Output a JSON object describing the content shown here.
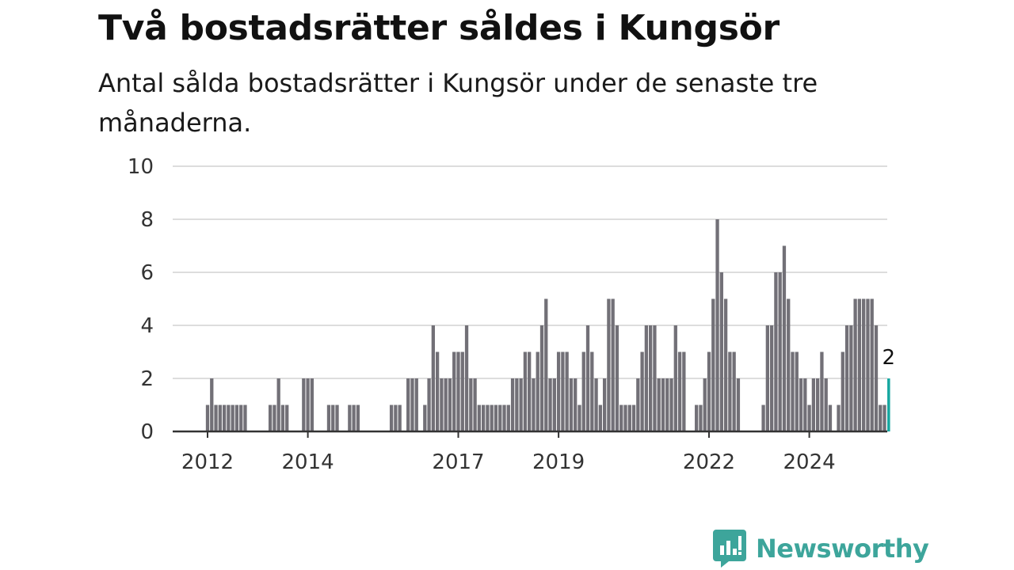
{
  "title": "Två bostadsrätter såldes i Kungsör",
  "subtitle": "Antal sålda bostadsrätter i Kungsör under de senaste tre månaderna.",
  "brand": {
    "name": "Newsworthy",
    "icon": "newsworthy-logo-icon"
  },
  "colors": {
    "bar": "#727077",
    "highlight": "#16a7a0",
    "grid": "#dddddd",
    "axis": "#333333",
    "brand": "#3da59b"
  },
  "chart_data": {
    "type": "bar",
    "ylim": [
      0,
      10
    ],
    "yticks": [
      0,
      2,
      4,
      6,
      8,
      10
    ],
    "xticks": [
      {
        "label": "2012",
        "year": 2012
      },
      {
        "label": "2014",
        "year": 2014
      },
      {
        "label": "2017",
        "year": 2017
      },
      {
        "label": "2019",
        "year": 2019
      },
      {
        "label": "2022",
        "year": 2022
      },
      {
        "label": "2024",
        "year": 2024
      }
    ],
    "start": "2012-01",
    "values": [
      1,
      2,
      1,
      1,
      1,
      1,
      1,
      1,
      1,
      1,
      0,
      0,
      0,
      0,
      0,
      1,
      1,
      2,
      1,
      1,
      0,
      0,
      0,
      2,
      2,
      2,
      0,
      0,
      0,
      1,
      1,
      1,
      0,
      0,
      1,
      1,
      1,
      0,
      0,
      0,
      0,
      0,
      0,
      0,
      1,
      1,
      1,
      0,
      2,
      2,
      2,
      0,
      1,
      2,
      4,
      3,
      2,
      2,
      2,
      3,
      3,
      3,
      4,
      2,
      2,
      1,
      1,
      1,
      1,
      1,
      1,
      1,
      1,
      2,
      2,
      2,
      3,
      3,
      2,
      3,
      4,
      5,
      2,
      2,
      3,
      3,
      3,
      2,
      2,
      1,
      3,
      4,
      3,
      2,
      1,
      2,
      5,
      5,
      4,
      1,
      1,
      1,
      1,
      2,
      3,
      4,
      4,
      4,
      2,
      2,
      2,
      2,
      4,
      3,
      3,
      0,
      0,
      1,
      1,
      2,
      3,
      5,
      8,
      6,
      5,
      3,
      3,
      2,
      0,
      0,
      0,
      0,
      0,
      1,
      4,
      4,
      6,
      6,
      7,
      5,
      3,
      3,
      2,
      2,
      1,
      2,
      2,
      3,
      2,
      1,
      0,
      1,
      3,
      4,
      4,
      5,
      5,
      5,
      5,
      5,
      4,
      1,
      1,
      2
    ],
    "highlight_label": "2"
  }
}
